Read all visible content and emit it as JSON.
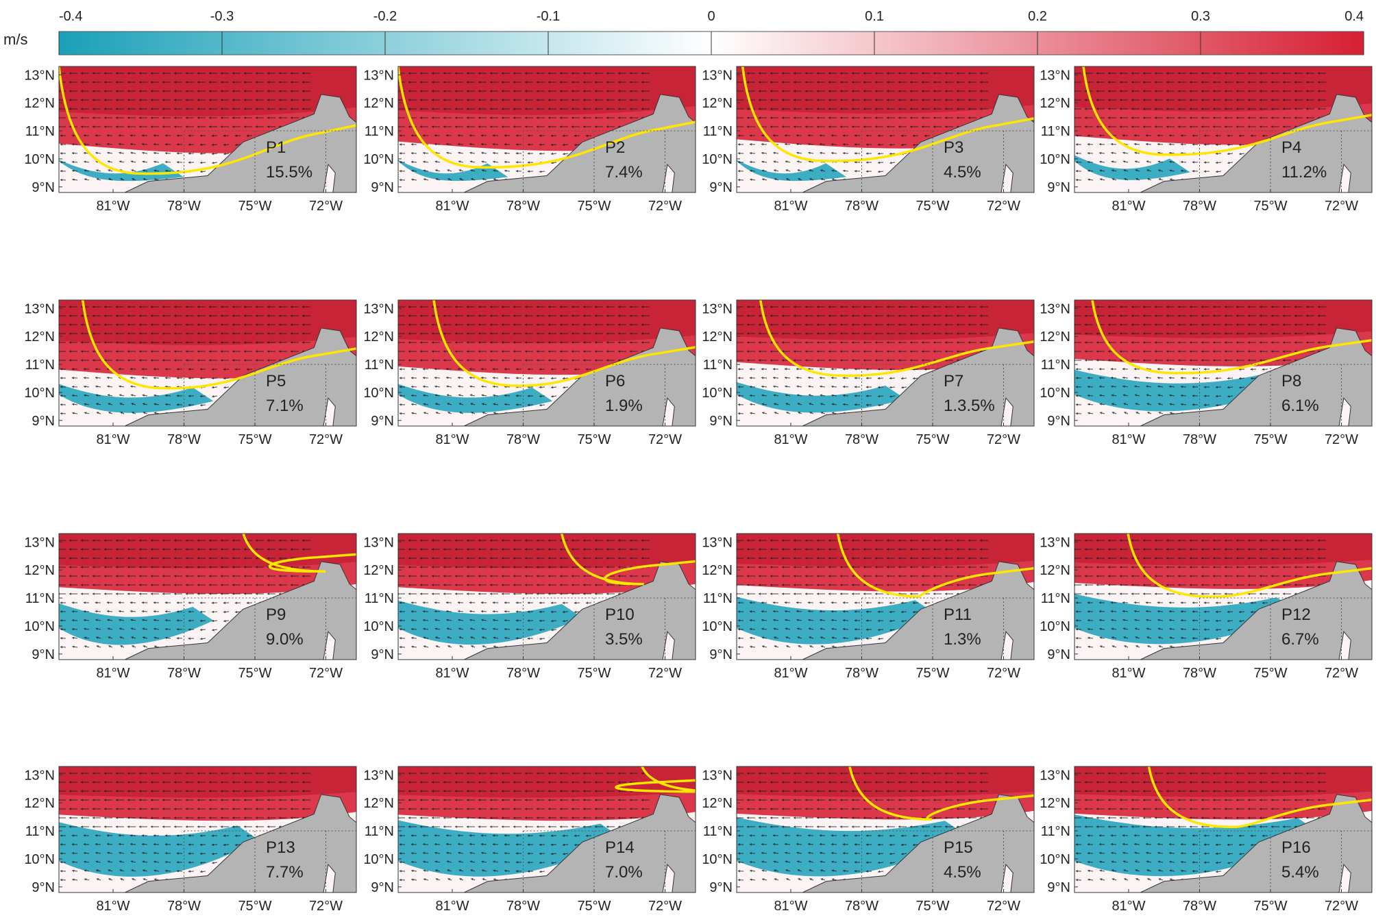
{
  "colorbar": {
    "unit": "m/s",
    "ticks": [
      "-0.4",
      "-0.3",
      "-0.2",
      "-0.1",
      "0",
      "0.1",
      "0.2",
      "0.3",
      "0.4"
    ],
    "min": -0.4,
    "max": 0.4,
    "color_negative": "#1aa0b8",
    "color_zero": "#ffffff",
    "color_positive": "#d61f33"
  },
  "axes": {
    "lon_ticks": [
      "81°W",
      "78°W",
      "75°W",
      "72°W"
    ],
    "lat_ticks": [
      "13°N",
      "12°N",
      "11°N",
      "10°N",
      "9°N"
    ]
  },
  "colors": {
    "land": "#b4b4b4",
    "front_line": "#ffe600",
    "arrow": "#1a1a1a",
    "positive": "#d61f33",
    "negative": "#1aa0b8"
  },
  "panels": [
    {
      "label": "P1",
      "percent": "15.5%",
      "red_level": 0.72,
      "blue_level": 0.2,
      "cyan_extent": 0.35,
      "front_depth": 0.85,
      "front_start": 0.0
    },
    {
      "label": "P2",
      "percent": "7.4%",
      "red_level": 0.7,
      "blue_level": 0.2,
      "cyan_extent": 0.3,
      "front_depth": 0.8,
      "front_start": 0.0
    },
    {
      "label": "P3",
      "percent": "4.5%",
      "red_level": 0.68,
      "blue_level": 0.2,
      "cyan_extent": 0.3,
      "front_depth": 0.75,
      "front_start": 0.02
    },
    {
      "label": "P4",
      "percent": "11.2%",
      "red_level": 0.65,
      "blue_level": 0.25,
      "cyan_extent": 0.32,
      "front_depth": 0.7,
      "front_start": 0.03
    },
    {
      "label": "P5",
      "percent": "7.1%",
      "red_level": 0.65,
      "blue_level": 0.3,
      "cyan_extent": 0.45,
      "front_depth": 0.7,
      "front_start": 0.08
    },
    {
      "label": "P6",
      "percent": "1.9%",
      "red_level": 0.62,
      "blue_level": 0.3,
      "cyan_extent": 0.45,
      "front_depth": 0.68,
      "front_start": 0.12
    },
    {
      "label": "P7",
      "percent": "1.3.5%",
      "red_level": 0.58,
      "blue_level": 0.32,
      "cyan_extent": 0.5,
      "front_depth": 0.6,
      "front_start": 0.08
    },
    {
      "label": "P8",
      "percent": "6.1%",
      "red_level": 0.55,
      "blue_level": 0.45,
      "cyan_extent": 0.65,
      "front_depth": 0.58,
      "front_start": 0.06
    },
    {
      "label": "P9",
      "percent": "9.0%",
      "red_level": 0.5,
      "blue_level": 0.45,
      "cyan_extent": 0.45,
      "front_depth": 0.3,
      "front_start": 0.62
    },
    {
      "label": "P10",
      "percent": "3.5%",
      "red_level": 0.5,
      "blue_level": 0.48,
      "cyan_extent": 0.55,
      "front_depth": 0.4,
      "front_start": 0.55
    },
    {
      "label": "P11",
      "percent": "1.3%",
      "red_level": 0.48,
      "blue_level": 0.52,
      "cyan_extent": 0.6,
      "front_depth": 0.5,
      "front_start": 0.34
    },
    {
      "label": "P12",
      "percent": "6.7%",
      "red_level": 0.46,
      "blue_level": 0.55,
      "cyan_extent": 0.68,
      "front_depth": 0.5,
      "front_start": 0.18
    },
    {
      "label": "P13",
      "percent": "7.7%",
      "red_level": 0.45,
      "blue_level": 0.6,
      "cyan_extent": 0.6,
      "front_depth": 0,
      "front_start": 1.0
    },
    {
      "label": "P14",
      "percent": "7.0%",
      "red_level": 0.45,
      "blue_level": 0.62,
      "cyan_extent": 0.68,
      "front_depth": 0.2,
      "front_start": 0.82
    },
    {
      "label": "P15",
      "percent": "4.5%",
      "red_level": 0.44,
      "blue_level": 0.65,
      "cyan_extent": 0.7,
      "front_depth": 0.42,
      "front_start": 0.38
    },
    {
      "label": "P16",
      "percent": "5.4%",
      "red_level": 0.44,
      "blue_level": 0.68,
      "cyan_extent": 0.75,
      "front_depth": 0.48,
      "front_start": 0.25
    }
  ]
}
